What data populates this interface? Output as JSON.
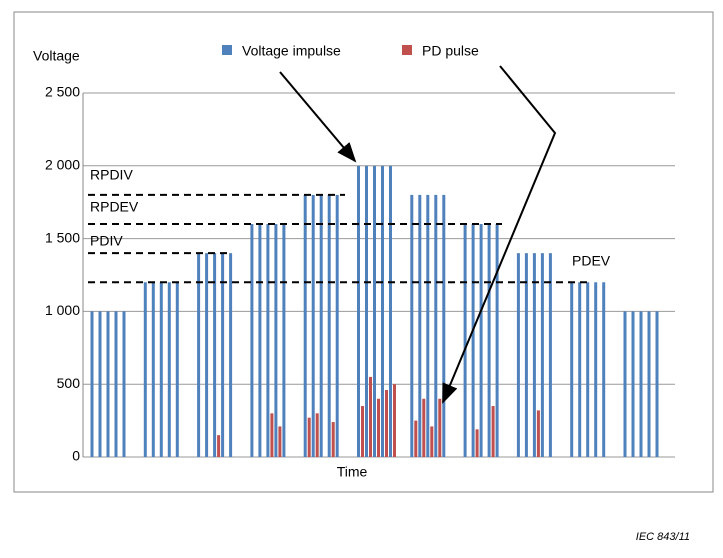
{
  "chart_data": {
    "type": "bar",
    "y_label": "Voltage",
    "x_label": "Time",
    "series": [
      {
        "name": "Voltage impulse",
        "color": "#4f81bd",
        "values": [
          1000,
          1000,
          1000,
          1000,
          1000,
          1200,
          1200,
          1200,
          1200,
          1200,
          1400,
          1400,
          1400,
          1400,
          1400,
          1600,
          1600,
          1600,
          1600,
          1600,
          1800,
          1800,
          1800,
          1800,
          1800,
          2000,
          2000,
          2000,
          2000,
          2000,
          1800,
          1800,
          1800,
          1800,
          1800,
          1600,
          1600,
          1600,
          1600,
          1600,
          1400,
          1400,
          1400,
          1400,
          1400,
          1200,
          1200,
          1200,
          1200,
          1200,
          1000,
          1000,
          1000,
          1000,
          1000
        ]
      },
      {
        "name": "PD pulse",
        "color": "#c0504d",
        "values": [
          null,
          null,
          null,
          null,
          null,
          null,
          null,
          null,
          null,
          null,
          null,
          null,
          150,
          null,
          null,
          null,
          null,
          300,
          210,
          null,
          270,
          300,
          null,
          240,
          null,
          350,
          550,
          400,
          460,
          500,
          250,
          400,
          210,
          400,
          null,
          null,
          190,
          null,
          350,
          null,
          null,
          null,
          320,
          null,
          null,
          null,
          null,
          null,
          null,
          null,
          null,
          null,
          null,
          null,
          null
        ]
      }
    ],
    "thresholds": [
      {
        "label": "RPDIV",
        "value": 1800
      },
      {
        "label": "RPDEV",
        "value": 1600
      },
      {
        "label": "PDIV",
        "value": 1400
      },
      {
        "label": "PDEV",
        "value": 1200
      }
    ],
    "ylim": [
      0,
      2500
    ],
    "yticks": [
      0,
      500,
      {
        "value": 1000,
        "label": "1 000"
      },
      {
        "value": 1500,
        "label": "1 500"
      },
      {
        "value": 2000,
        "label": "2 000"
      },
      {
        "value": 2500,
        "label": "2 500"
      }
    ],
    "grid": true,
    "footer": "IEC   843/11"
  }
}
